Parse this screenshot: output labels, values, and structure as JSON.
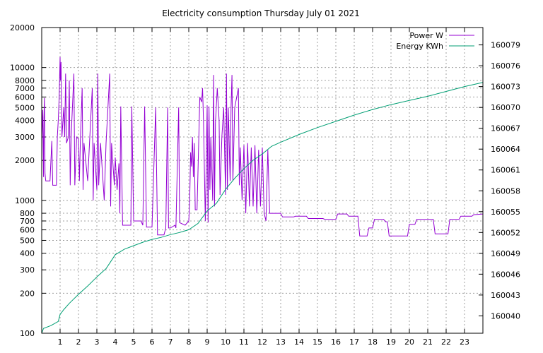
{
  "chart_data": {
    "type": "line",
    "title": "Electricity consumption Thursday July 01 2021",
    "xlabel": "",
    "ylabel": "",
    "y2label": "",
    "grid": true,
    "legend_position": "top-right",
    "x_range": [
      0,
      24
    ],
    "x_ticks": [
      1,
      2,
      3,
      4,
      5,
      6,
      7,
      8,
      9,
      10,
      11,
      12,
      13,
      14,
      15,
      16,
      17,
      18,
      19,
      20,
      21,
      22,
      23
    ],
    "y_scale": "log",
    "y_range": [
      100,
      20000
    ],
    "y_ticks": [
      100,
      200,
      300,
      400,
      500,
      600,
      700,
      800,
      1000,
      2000,
      3000,
      4000,
      5000,
      6000,
      7000,
      8000,
      10000,
      20000
    ],
    "y2_range": [
      160037.5,
      160081.5
    ],
    "y2_ticks": [
      160040,
      160043,
      160046,
      160049,
      160052,
      160055,
      160058,
      160061,
      160064,
      160067,
      160070,
      160073,
      160076,
      160079
    ],
    "series": [
      {
        "name": "Power W",
        "axis": "left",
        "color": "#9400d3",
        "points": [
          [
            0.0,
            2800
          ],
          [
            0.05,
            4800
          ],
          [
            0.1,
            1500
          ],
          [
            0.12,
            4200
          ],
          [
            0.15,
            5900
          ],
          [
            0.18,
            1600
          ],
          [
            0.22,
            1400
          ],
          [
            0.35,
            1400
          ],
          [
            0.45,
            1400
          ],
          [
            0.55,
            2800
          ],
          [
            0.6,
            1300
          ],
          [
            0.8,
            1300
          ],
          [
            0.85,
            3000
          ],
          [
            0.9,
            4000
          ],
          [
            0.95,
            6000
          ],
          [
            1.0,
            12000
          ],
          [
            1.02,
            8000
          ],
          [
            1.05,
            11000
          ],
          [
            1.1,
            3000
          ],
          [
            1.2,
            5000
          ],
          [
            1.25,
            3000
          ],
          [
            1.3,
            9000
          ],
          [
            1.35,
            2700
          ],
          [
            1.45,
            3000
          ],
          [
            1.5,
            8000
          ],
          [
            1.55,
            1300
          ],
          [
            1.6,
            3000
          ],
          [
            1.75,
            9000
          ],
          [
            1.8,
            1300
          ],
          [
            1.9,
            3000
          ],
          [
            2.0,
            2900
          ],
          [
            2.05,
            1400
          ],
          [
            2.1,
            2700
          ],
          [
            2.2,
            7000
          ],
          [
            2.25,
            1200
          ],
          [
            2.3,
            2700
          ],
          [
            2.5,
            1400
          ],
          [
            2.6,
            2700
          ],
          [
            2.75,
            7000
          ],
          [
            2.8,
            1000
          ],
          [
            2.85,
            2700
          ],
          [
            3.0,
            1200
          ],
          [
            3.05,
            9000
          ],
          [
            3.1,
            1300
          ],
          [
            3.2,
            2700
          ],
          [
            3.4,
            1000
          ],
          [
            3.5,
            2700
          ],
          [
            3.7,
            9000
          ],
          [
            3.75,
            900
          ],
          [
            3.8,
            2700
          ],
          [
            3.95,
            1300
          ],
          [
            4.0,
            2100
          ],
          [
            4.1,
            1200
          ],
          [
            4.2,
            1900
          ],
          [
            4.25,
            800
          ],
          [
            4.3,
            5100
          ],
          [
            4.4,
            650
          ],
          [
            4.55,
            650
          ],
          [
            4.7,
            650
          ],
          [
            4.85,
            650
          ],
          [
            4.9,
            5100
          ],
          [
            5.0,
            700
          ],
          [
            5.2,
            700
          ],
          [
            5.4,
            700
          ],
          [
            5.5,
            650
          ],
          [
            5.6,
            5100
          ],
          [
            5.7,
            630
          ],
          [
            5.8,
            630
          ],
          [
            6.0,
            630
          ],
          [
            6.2,
            5000
          ],
          [
            6.3,
            550
          ],
          [
            6.5,
            550
          ],
          [
            6.65,
            550
          ],
          [
            6.75,
            620
          ],
          [
            6.85,
            5000
          ],
          [
            6.9,
            620
          ],
          [
            7.0,
            620
          ],
          [
            7.25,
            650
          ],
          [
            7.3,
            620
          ],
          [
            7.45,
            5000
          ],
          [
            7.5,
            680
          ],
          [
            7.8,
            650
          ],
          [
            8.0,
            700
          ],
          [
            8.05,
            1000
          ],
          [
            8.1,
            2300
          ],
          [
            8.15,
            1800
          ],
          [
            8.2,
            3000
          ],
          [
            8.25,
            1500
          ],
          [
            8.3,
            2700
          ],
          [
            8.35,
            850
          ],
          [
            8.45,
            850
          ],
          [
            8.6,
            6000
          ],
          [
            8.7,
            5500
          ],
          [
            8.75,
            7000
          ],
          [
            8.8,
            4000
          ],
          [
            8.9,
            700
          ],
          [
            9.0,
            5200
          ],
          [
            9.05,
            680
          ],
          [
            9.1,
            5100
          ],
          [
            9.15,
            1200
          ],
          [
            9.2,
            3000
          ],
          [
            9.3,
            1000
          ],
          [
            9.35,
            8800
          ],
          [
            9.4,
            900
          ],
          [
            9.45,
            3800
          ],
          [
            9.55,
            7000
          ],
          [
            9.65,
            4000
          ],
          [
            9.7,
            1100
          ],
          [
            9.8,
            3000
          ],
          [
            9.9,
            5000
          ],
          [
            10.0,
            1100
          ],
          [
            10.05,
            9000
          ],
          [
            10.1,
            1200
          ],
          [
            10.15,
            5000
          ],
          [
            10.25,
            1400
          ],
          [
            10.3,
            5000
          ],
          [
            10.35,
            8800
          ],
          [
            10.4,
            1400
          ],
          [
            10.5,
            5000
          ],
          [
            10.7,
            7000
          ],
          [
            10.75,
            1300
          ],
          [
            10.8,
            2500
          ],
          [
            10.9,
            1000
          ],
          [
            11.0,
            2600
          ],
          [
            11.1,
            800
          ],
          [
            11.2,
            2700
          ],
          [
            11.3,
            900
          ],
          [
            11.4,
            2500
          ],
          [
            11.5,
            900
          ],
          [
            11.6,
            2600
          ],
          [
            11.7,
            800
          ],
          [
            11.8,
            2400
          ],
          [
            11.9,
            900
          ],
          [
            12.0,
            2500
          ],
          [
            12.1,
            800
          ],
          [
            12.2,
            700
          ],
          [
            12.3,
            2400
          ],
          [
            12.4,
            800
          ],
          [
            13.0,
            800
          ],
          [
            13.1,
            750
          ],
          [
            13.7,
            750
          ],
          [
            13.8,
            760
          ],
          [
            14.4,
            760
          ],
          [
            14.5,
            730
          ],
          [
            15.3,
            730
          ],
          [
            15.4,
            720
          ],
          [
            16.0,
            720
          ],
          [
            16.1,
            790
          ],
          [
            16.6,
            790
          ],
          [
            16.7,
            760
          ],
          [
            17.2,
            760
          ],
          [
            17.3,
            540
          ],
          [
            17.7,
            540
          ],
          [
            17.8,
            620
          ],
          [
            18.0,
            620
          ],
          [
            18.1,
            720
          ],
          [
            18.6,
            720
          ],
          [
            18.7,
            690
          ],
          [
            18.8,
            690
          ],
          [
            18.9,
            540
          ],
          [
            19.9,
            540
          ],
          [
            20.0,
            660
          ],
          [
            20.3,
            660
          ],
          [
            20.4,
            720
          ],
          [
            21.3,
            720
          ],
          [
            21.4,
            560
          ],
          [
            22.1,
            560
          ],
          [
            22.2,
            720
          ],
          [
            22.7,
            720
          ],
          [
            22.8,
            760
          ],
          [
            23.4,
            760
          ],
          [
            23.5,
            780
          ],
          [
            24.0,
            790
          ]
        ]
      },
      {
        "name": "Energy KWh",
        "axis": "right",
        "color": "#009e73",
        "points": [
          [
            0.0,
            160037.5
          ],
          [
            0.1,
            160038.2
          ],
          [
            0.5,
            160038.6
          ],
          [
            0.9,
            160039.2
          ],
          [
            1.0,
            160040.2
          ],
          [
            1.2,
            160040.9
          ],
          [
            1.5,
            160041.8
          ],
          [
            2.0,
            160043.1
          ],
          [
            2.5,
            160044.3
          ],
          [
            3.0,
            160045.6
          ],
          [
            3.5,
            160046.8
          ],
          [
            4.0,
            160048.8
          ],
          [
            4.5,
            160049.6
          ],
          [
            5.0,
            160050.1
          ],
          [
            5.5,
            160050.6
          ],
          [
            6.0,
            160051.0
          ],
          [
            6.5,
            160051.3
          ],
          [
            7.0,
            160051.7
          ],
          [
            7.5,
            160052.0
          ],
          [
            8.0,
            160052.4
          ],
          [
            8.5,
            160053.3
          ],
          [
            9.0,
            160055.1
          ],
          [
            9.5,
            160056.2
          ],
          [
            10.0,
            160058.2
          ],
          [
            10.5,
            160059.8
          ],
          [
            11.0,
            160061.2
          ],
          [
            11.5,
            160062.4
          ],
          [
            12.0,
            160063.3
          ],
          [
            12.5,
            160064.4
          ],
          [
            13.0,
            160065.0
          ],
          [
            14.0,
            160066.1
          ],
          [
            15.0,
            160067.1
          ],
          [
            16.0,
            160068.0
          ],
          [
            17.0,
            160068.9
          ],
          [
            18.0,
            160069.7
          ],
          [
            19.0,
            160070.4
          ],
          [
            20.0,
            160071.0
          ],
          [
            21.0,
            160071.6
          ],
          [
            22.0,
            160072.3
          ],
          [
            23.0,
            160073.0
          ],
          [
            24.0,
            160073.6
          ]
        ]
      }
    ]
  }
}
